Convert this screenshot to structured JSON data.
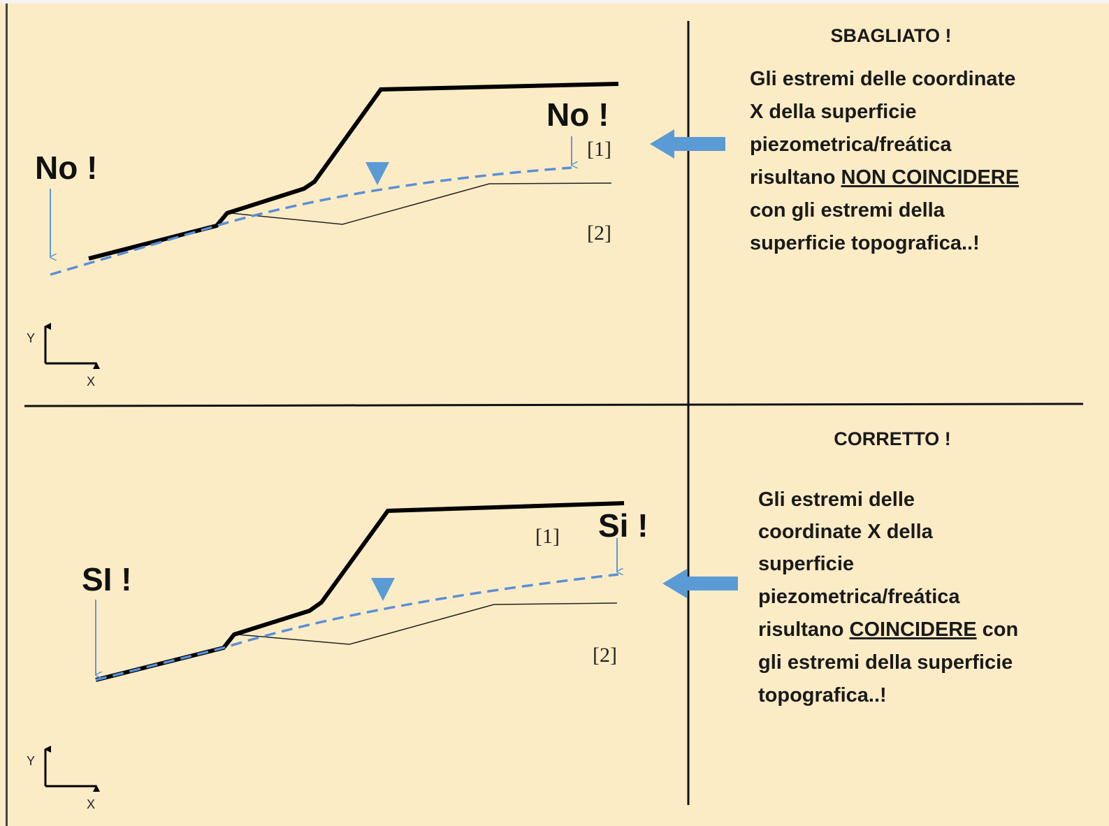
{
  "top": {
    "title": "SBAGLIATO !",
    "description": [
      "Gli estremi delle coordinate",
      "X della superficie",
      "piezometrica/freática",
      "risultano ",
      "NON COINCIDERE",
      "con gli estremi della",
      "superficie topografica..!"
    ],
    "left_label": "No !",
    "right_label": "No !",
    "layer_1": "[1]",
    "layer_2": "[2]",
    "axis_y": "Y",
    "axis_x": "X"
  },
  "bottom": {
    "title": "CORRETTO !",
    "description": [
      "Gli estremi delle",
      "coordinate X della",
      "superficie",
      "piezometrica/freática",
      "risultano ",
      "COINCIDERE",
      " con",
      "gli estremi della superficie",
      "topografica..!"
    ],
    "left_label": "SI !",
    "right_label": "Si !",
    "layer_1": "[1]",
    "layer_2": "[2]",
    "axis_y": "Y",
    "axis_x": "X"
  }
}
